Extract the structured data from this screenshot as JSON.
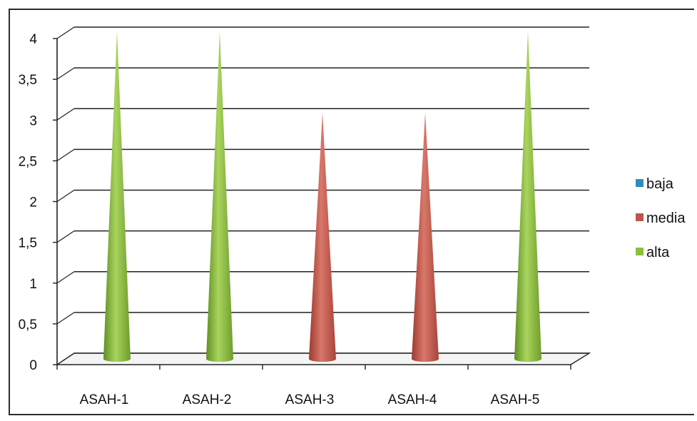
{
  "chart_data": {
    "type": "bar",
    "subtype": "3d-cone",
    "title": "",
    "xlabel": "",
    "ylabel": "",
    "categories": [
      "ASAH-1",
      "ASAH-2",
      "ASAH-3",
      "ASAH-4",
      "ASAH-5"
    ],
    "ylim": [
      0,
      4
    ],
    "yticks": [
      0,
      0.5,
      1,
      1.5,
      2,
      2.5,
      3,
      3.5,
      4
    ],
    "ytick_labels": [
      "0",
      "0,5",
      "1",
      "1,5",
      "2",
      "2,5",
      "3",
      "3,5",
      "4"
    ],
    "grid": true,
    "legend_position": "right",
    "series": [
      {
        "name": "baja",
        "color": "#2a8fbf",
        "values": [
          0,
          0,
          0,
          0,
          0
        ]
      },
      {
        "name": "media",
        "color": "#c0554a",
        "values": [
          0,
          0,
          3,
          3,
          0
        ]
      },
      {
        "name": "alta",
        "color": "#8cbf3f",
        "values": [
          4,
          4,
          0,
          0,
          4
        ]
      }
    ]
  }
}
